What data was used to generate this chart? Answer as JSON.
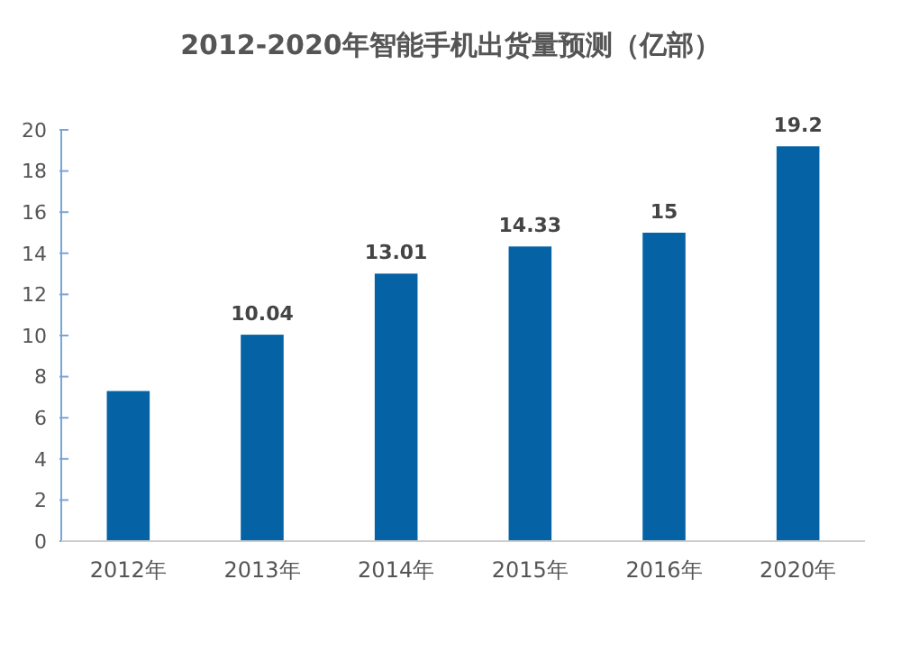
{
  "chart_data": {
    "type": "bar",
    "title": "2012-2020年智能手机出货量预测（亿部）",
    "categories": [
      "2012年",
      "2013年",
      "2014年",
      "2015年",
      "2016年",
      "2020年"
    ],
    "values": [
      7.3,
      10.04,
      13.01,
      14.33,
      15,
      19.2
    ],
    "value_labels": [
      null,
      "10.04",
      "13.01",
      "14.33",
      "15",
      "19.2"
    ],
    "color": "#0563a5",
    "ylim": [
      0,
      20
    ],
    "yticks": [
      0,
      2,
      4,
      6,
      8,
      10,
      12,
      14,
      16,
      18,
      20
    ],
    "grid": false
  }
}
